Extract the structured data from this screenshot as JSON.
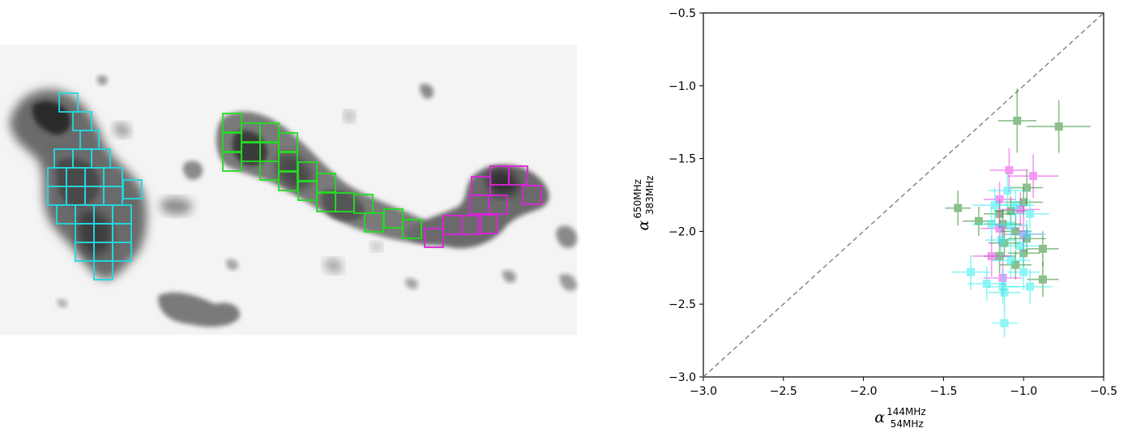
{
  "colors": {
    "cyan": "#22d8e0",
    "green": "#22dd22",
    "magenta": "#dd22dd",
    "dark_green": "#2e8b2e",
    "diagonal": "#888888"
  },
  "chart_data": [
    {
      "type": "image",
      "region_colors": [
        "cyan",
        "green",
        "magenta"
      ]
    },
    {
      "type": "scatter",
      "xlabel": {
        "symbol": "α",
        "superscript": "144MHz",
        "subscript": "54MHz"
      },
      "ylabel": {
        "symbol": "α",
        "superscript": "650MHz",
        "subscript": "383MHz"
      },
      "xlim": [
        -3.0,
        -0.5
      ],
      "ylim": [
        -3.0,
        -0.5
      ],
      "x_ticks": [
        "−3.0",
        "−2.5",
        "−2.0",
        "−1.5",
        "−1.0",
        "−0.5"
      ],
      "y_ticks": [
        "−3.0",
        "−2.5",
        "−2.0",
        "−1.5",
        "−1.0",
        "−0.5"
      ],
      "x_tick_values": [
        -3.0,
        -2.5,
        -2.0,
        -1.5,
        -1.0,
        -0.5
      ],
      "y_tick_values": [
        -3.0,
        -2.5,
        -2.0,
        -1.5,
        -1.0,
        -0.5
      ],
      "reference_line": {
        "style": "dashed",
        "from": [
          -3.0,
          -3.0
        ],
        "to": [
          -0.5,
          -0.5
        ]
      },
      "grid": false,
      "series": [
        {
          "color": "#2e8b2e",
          "points": [
            {
              "x": -1.04,
              "y": -1.24,
              "xerr": 0.12,
              "yerr": 0.22
            },
            {
              "x": -0.78,
              "y": -1.28,
              "xerr": 0.2,
              "yerr": 0.18
            },
            {
              "x": -1.41,
              "y": -1.84,
              "xerr": 0.08,
              "yerr": 0.12
            },
            {
              "x": -1.28,
              "y": -1.93,
              "xerr": 0.1,
              "yerr": 0.1
            },
            {
              "x": -1.15,
              "y": -1.88,
              "xerr": 0.1,
              "yerr": 0.1
            },
            {
              "x": -1.13,
              "y": -1.95,
              "xerr": 0.12,
              "yerr": 0.1
            },
            {
              "x": -1.08,
              "y": -1.86,
              "xerr": 0.1,
              "yerr": 0.1
            },
            {
              "x": -0.98,
              "y": -1.7,
              "xerr": 0.1,
              "yerr": 0.12
            },
            {
              "x": -1.0,
              "y": -1.8,
              "xerr": 0.12,
              "yerr": 0.1
            },
            {
              "x": -1.05,
              "y": -2.0,
              "xerr": 0.1,
              "yerr": 0.12
            },
            {
              "x": -1.12,
              "y": -2.08,
              "xerr": 0.1,
              "yerr": 0.1
            },
            {
              "x": -1.15,
              "y": -2.17,
              "xerr": 0.1,
              "yerr": 0.12
            },
            {
              "x": -0.98,
              "y": -2.05,
              "xerr": 0.12,
              "yerr": 0.1
            },
            {
              "x": -0.88,
              "y": -2.12,
              "xerr": 0.1,
              "yerr": 0.12
            },
            {
              "x": -1.05,
              "y": -2.23,
              "xerr": 0.1,
              "yerr": 0.1
            },
            {
              "x": -0.88,
              "y": -2.33,
              "xerr": 0.1,
              "yerr": 0.12
            },
            {
              "x": -1.0,
              "y": -2.15,
              "xerr": 0.1,
              "yerr": 0.1
            }
          ]
        },
        {
          "color": "#ee44ee",
          "points": [
            {
              "x": -1.09,
              "y": -1.58,
              "xerr": 0.12,
              "yerr": 0.15
            },
            {
              "x": -0.94,
              "y": -1.62,
              "xerr": 0.16,
              "yerr": 0.15
            },
            {
              "x": -1.15,
              "y": -1.78,
              "xerr": 0.1,
              "yerr": 0.12
            },
            {
              "x": -1.02,
              "y": -1.85,
              "xerr": 0.12,
              "yerr": 0.12
            },
            {
              "x": -1.15,
              "y": -1.98,
              "xerr": 0.12,
              "yerr": 0.12
            },
            {
              "x": -1.0,
              "y": -2.02,
              "xerr": 0.12,
              "yerr": 0.12
            },
            {
              "x": -1.2,
              "y": -2.17,
              "xerr": 0.12,
              "yerr": 0.14
            },
            {
              "x": -1.13,
              "y": -2.32,
              "xerr": 0.12,
              "yerr": 0.12
            }
          ]
        },
        {
          "color": "#33eeee",
          "points": [
            {
              "x": -1.1,
              "y": -1.72,
              "xerr": 0.12,
              "yerr": 0.12
            },
            {
              "x": -1.18,
              "y": -1.82,
              "xerr": 0.14,
              "yerr": 0.12
            },
            {
              "x": -1.05,
              "y": -1.82,
              "xerr": 0.12,
              "yerr": 0.1
            },
            {
              "x": -0.96,
              "y": -1.88,
              "xerr": 0.12,
              "yerr": 0.1
            },
            {
              "x": -1.2,
              "y": -1.95,
              "xerr": 0.12,
              "yerr": 0.12
            },
            {
              "x": -1.08,
              "y": -1.96,
              "xerr": 0.1,
              "yerr": 0.1
            },
            {
              "x": -0.98,
              "y": -2.02,
              "xerr": 0.12,
              "yerr": 0.1
            },
            {
              "x": -1.14,
              "y": -2.06,
              "xerr": 0.1,
              "yerr": 0.12
            },
            {
              "x": -1.02,
              "y": -2.1,
              "xerr": 0.12,
              "yerr": 0.1
            },
            {
              "x": -1.08,
              "y": -2.2,
              "xerr": 0.12,
              "yerr": 0.12
            },
            {
              "x": -1.33,
              "y": -2.28,
              "xerr": 0.12,
              "yerr": 0.12
            },
            {
              "x": -1.23,
              "y": -2.36,
              "xerr": 0.12,
              "yerr": 0.12
            },
            {
              "x": -1.13,
              "y": -2.38,
              "xerr": 0.1,
              "yerr": 0.12
            },
            {
              "x": -0.96,
              "y": -2.38,
              "xerr": 0.14,
              "yerr": 0.12
            },
            {
              "x": -1.12,
              "y": -2.42,
              "xerr": 0.1,
              "yerr": 0.12
            },
            {
              "x": -1.12,
              "y": -2.63,
              "xerr": 0.08,
              "yerr": 0.1
            },
            {
              "x": -1.0,
              "y": -2.28,
              "xerr": 0.1,
              "yerr": 0.12
            }
          ]
        }
      ]
    }
  ]
}
